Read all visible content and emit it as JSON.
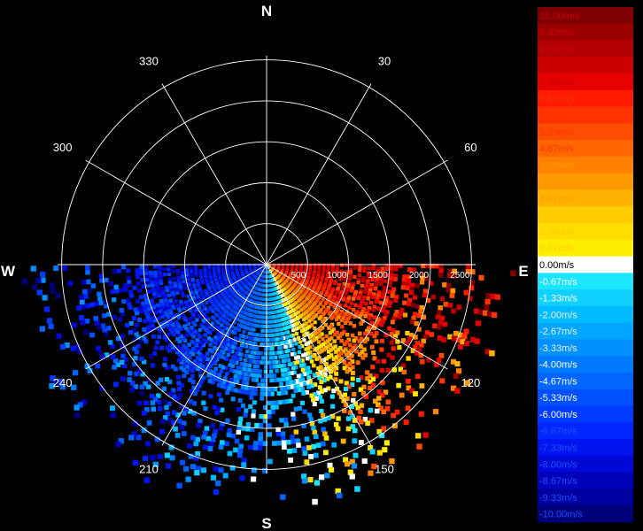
{
  "chart_data": {
    "type": "polar-radial-velocity",
    "cardinal_labels": {
      "north": "N",
      "east": "E",
      "south": "S",
      "west": "W"
    },
    "bearing_labels": [
      {
        "deg": 30,
        "text": "30"
      },
      {
        "deg": 60,
        "text": "60"
      },
      {
        "deg": 120,
        "text": "120"
      },
      {
        "deg": 150,
        "text": "150"
      },
      {
        "deg": 210,
        "text": "210"
      },
      {
        "deg": 240,
        "text": "240"
      },
      {
        "deg": 300,
        "text": "300"
      },
      {
        "deg": 330,
        "text": "330"
      }
    ],
    "range_rings": [
      500,
      1000,
      1500,
      2000,
      2500
    ],
    "range_labels": [
      "500",
      "1000",
      "1500",
      "2000",
      "2500"
    ],
    "range_max": 2550,
    "spoke_interval_deg": 30,
    "data_sector_deg": [
      90,
      270
    ],
    "velocity_pattern": [
      {
        "azimuth": 100,
        "velocity": 7.5
      },
      {
        "azimuth": 110,
        "velocity": 6.6
      },
      {
        "azimuth": 125,
        "velocity": 5.0
      },
      {
        "azimuth": 140,
        "velocity": 3.3
      },
      {
        "azimuth": 152,
        "velocity": 1.3
      },
      {
        "azimuth": 160,
        "velocity": -0.7
      },
      {
        "azimuth": 175,
        "velocity": -2.7
      },
      {
        "azimuth": 195,
        "velocity": -4.7
      },
      {
        "azimuth": 220,
        "velocity": -6.0
      },
      {
        "azimuth": 250,
        "velocity": -6.7
      },
      {
        "azimuth": 265,
        "velocity": -7.3
      }
    ],
    "legend": {
      "unit": "m/s",
      "entries": [
        {
          "label": "10.00m/s",
          "color": "#7f0000"
        },
        {
          "label": "9.33m/s",
          "color": "#9a0000"
        },
        {
          "label": "8.67m/s",
          "color": "#b30000"
        },
        {
          "label": "8.00m/s",
          "color": "#cc0000"
        },
        {
          "label": "7.33m/s",
          "color": "#e60000"
        },
        {
          "label": "6.67m/s",
          "color": "#ff1a00"
        },
        {
          "label": "6.00m/s",
          "color": "#ff3300"
        },
        {
          "label": "5.33m/s",
          "color": "#ff4d00"
        },
        {
          "label": "4.67m/s",
          "color": "#ff6600"
        },
        {
          "label": "4.00m/s",
          "color": "#ff8000"
        },
        {
          "label": "3.33m/s",
          "color": "#ff9900"
        },
        {
          "label": "2.67m/s",
          "color": "#ffb300"
        },
        {
          "label": "2.00m/s",
          "color": "#ffcc00"
        },
        {
          "label": "1.33m/s",
          "color": "#ffdd00"
        },
        {
          "label": "0.67m/s",
          "color": "#ffee00"
        },
        {
          "label": "0.00m/s",
          "color": "#ffffff"
        },
        {
          "label": "-0.67m/s",
          "color": "#1ae6ff"
        },
        {
          "label": "-1.33m/s",
          "color": "#10d0ff"
        },
        {
          "label": "-2.00m/s",
          "color": "#00bbff"
        },
        {
          "label": "-2.67m/s",
          "color": "#00a6ff"
        },
        {
          "label": "-3.33m/s",
          "color": "#0090ff"
        },
        {
          "label": "-4.00m/s",
          "color": "#007aff"
        },
        {
          "label": "-4.67m/s",
          "color": "#0066ff"
        },
        {
          "label": "-5.33m/s",
          "color": "#0050ff"
        },
        {
          "label": "-6.00m/s",
          "color": "#003cff"
        },
        {
          "label": "-6.67m/s",
          "color": "#0026ff"
        },
        {
          "label": "-7.33m/s",
          "color": "#0014f0"
        },
        {
          "label": "-8.00m/s",
          "color": "#0008d6"
        },
        {
          "label": "-8.67m/s",
          "color": "#0000bb"
        },
        {
          "label": "-9.33m/s",
          "color": "#0000a0"
        },
        {
          "label": "-10.00m/s",
          "color": "#00007a"
        }
      ]
    }
  }
}
